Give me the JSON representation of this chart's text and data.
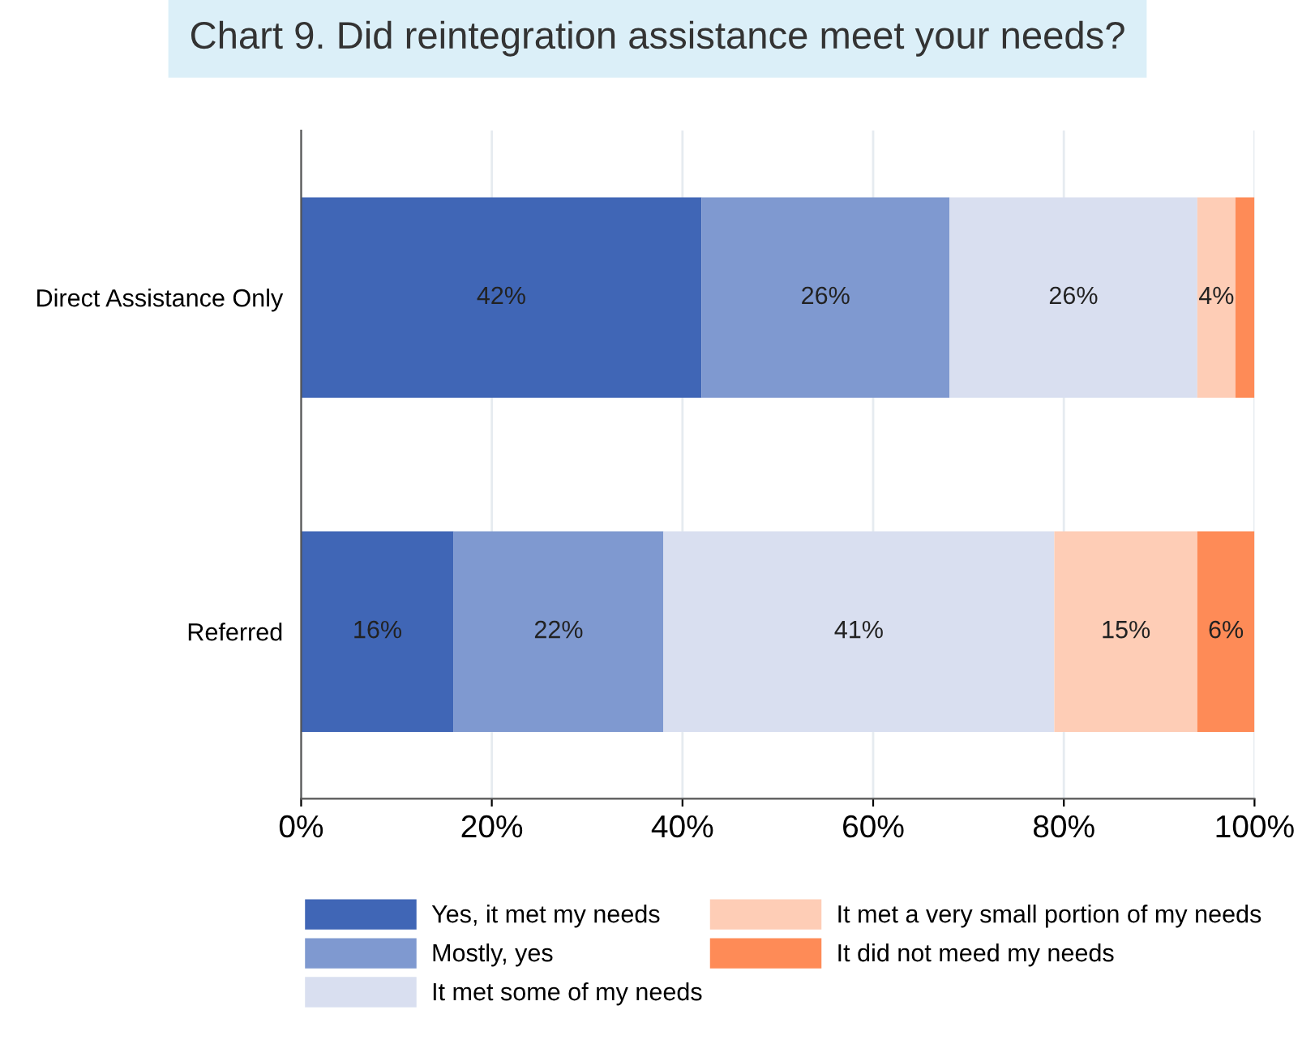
{
  "chart_data": {
    "type": "bar",
    "orientation": "horizontal",
    "stacked": true,
    "title": "Chart 9. Did reintegration assistance meet your needs?",
    "categories": [
      "Direct Assistance Only",
      "Referred"
    ],
    "series": [
      {
        "name": "Yes, it met my needs",
        "color": "#4066b6",
        "values": [
          42,
          16
        ],
        "value_labels": [
          "42%",
          "16%"
        ]
      },
      {
        "name": "Mostly, yes",
        "color": "#7f99d0",
        "values": [
          26,
          22
        ],
        "value_labels": [
          "26%",
          "22%"
        ]
      },
      {
        "name": "It met some of my needs",
        "color": "#d9dff0",
        "values": [
          26,
          41
        ],
        "value_labels": [
          "26%",
          "41%"
        ]
      },
      {
        "name": "It met a very small portion of my needs",
        "color": "#fecdb6",
        "values": [
          4,
          15
        ],
        "value_labels": [
          "4%",
          "15%"
        ]
      },
      {
        "name": "It did not meed my needs",
        "color": "#fe8b57",
        "values": [
          2,
          6
        ],
        "value_labels": [
          null,
          "6%"
        ]
      }
    ],
    "xlim": [
      0,
      100
    ],
    "xticks": [
      {
        "value": 0,
        "label": "0%"
      },
      {
        "value": 20,
        "label": "20%"
      },
      {
        "value": 40,
        "label": "40%"
      },
      {
        "value": 60,
        "label": "60%"
      },
      {
        "value": 80,
        "label": "80%"
      },
      {
        "value": 100,
        "label": "100%"
      }
    ],
    "grid": "x",
    "legend": "bottom"
  }
}
